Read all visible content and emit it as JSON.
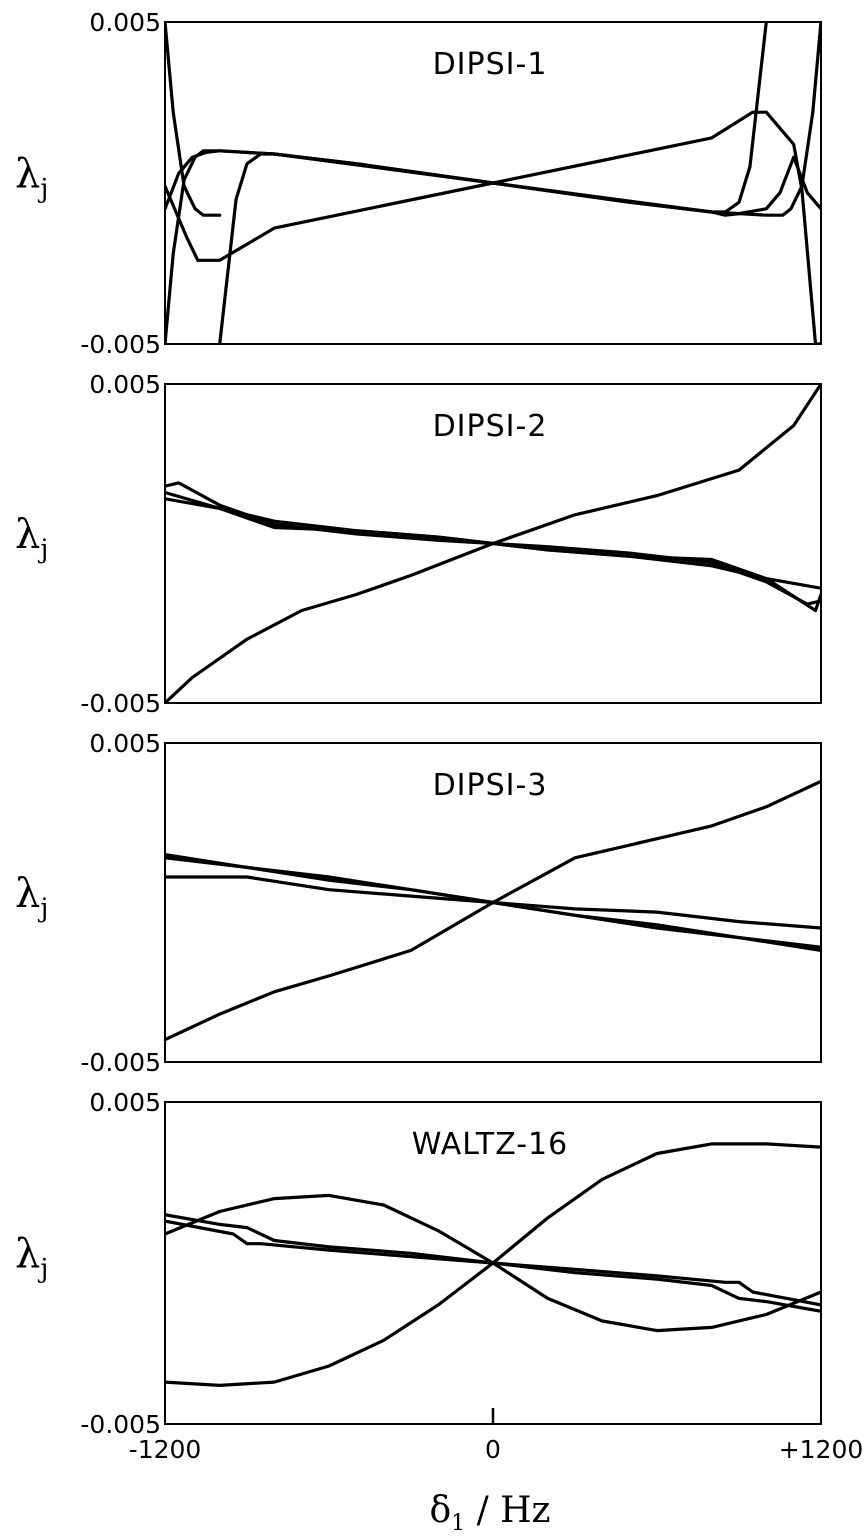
{
  "chart_data": [
    {
      "type": "line",
      "title": "DIPSI-1",
      "ylabel": "λ",
      "ylabel_sub": "j",
      "xlabel": "",
      "xlim": [
        -1200,
        1200
      ],
      "ylim": [
        -0.005,
        0.005
      ],
      "yticks": [
        {
          "value": 0.005,
          "label": "0.005"
        },
        {
          "value": -0.005,
          "label": "-0.005"
        }
      ],
      "xticks": [],
      "series": [
        {
          "x": [
            -1200,
            -1150,
            -1100,
            -1050,
            -1000,
            -800,
            -500,
            0,
            500,
            800,
            850,
            900,
            940,
            1000
          ],
          "y": [
            -0.0008,
            0.0003,
            0.0008,
            0.00095,
            0.001,
            0.0009,
            0.0006,
            0,
            -0.0006,
            -0.0009,
            -0.0009,
            -0.0006,
            0.0005,
            0.005
          ]
        },
        {
          "x": [
            -1200,
            -1170,
            -1130,
            -1090,
            -1060,
            -1000,
            -800,
            0,
            800,
            1000,
            1060,
            1090,
            1130,
            1170
          ],
          "y": [
            -0.005,
            -0.0022,
            0.0001,
            0.0008,
            0.001,
            0.001,
            0.0009,
            0,
            -0.0009,
            -0.001,
            -0.001,
            -0.0008,
            -0.0001,
            0.0022
          ]
        },
        {
          "x": [
            -1000,
            -1060,
            -1090,
            -1130,
            -1170,
            -1200
          ],
          "y": [
            -0.001,
            -0.001,
            -0.0008,
            -0.0001,
            0.0022,
            0.005
          ]
        },
        {
          "x": [
            1170,
            1200
          ],
          "y": [
            0.0022,
            0.005
          ]
        },
        {
          "x": [
            -1000,
            -940,
            -900,
            -850,
            -800,
            -500,
            0,
            500,
            800,
            850,
            900,
            1000,
            1050,
            1100,
            1150,
            1200
          ],
          "y": [
            -0.005,
            -0.0005,
            0.0006,
            0.0009,
            0.0009,
            0.0006,
            0,
            -0.0006,
            -0.0009,
            -0.001,
            -0.00095,
            -0.0008,
            -0.0003,
            0.0008,
            -0.0003,
            -0.0008
          ]
        },
        {
          "x": [
            -1200,
            -1120,
            -1080,
            -1000,
            -800,
            -400,
            0,
            400,
            800,
            950,
            1000,
            1100,
            1130,
            1180,
            1200
          ],
          "y": [
            -0.0001,
            -0.0017,
            -0.0024,
            -0.0024,
            -0.0014,
            -0.0007,
            0,
            0.0007,
            0.0014,
            0.0022,
            0.0022,
            0.0012,
            -0.0002,
            -0.005,
            -0.005
          ]
        }
      ]
    },
    {
      "type": "line",
      "title": "DIPSI-2",
      "ylabel": "λ",
      "ylabel_sub": "j",
      "xlabel": "",
      "xlim": [
        -1200,
        1200
      ],
      "ylim": [
        -0.005,
        0.005
      ],
      "yticks": [
        {
          "value": 0.005,
          "label": "0.005"
        },
        {
          "value": -0.005,
          "label": "-0.005"
        }
      ],
      "xticks": [],
      "series": [
        {
          "x": [
            -1200,
            -1100,
            -900,
            -700,
            -500,
            -300,
            0,
            300,
            600,
            900,
            1100,
            1200
          ],
          "y": [
            -0.005,
            -0.0042,
            -0.003,
            -0.0021,
            -0.0016,
            -0.001,
            0,
            0.0009,
            0.0015,
            0.0023,
            0.0037,
            0.005
          ]
        },
        {
          "x": [
            -1200,
            -1150,
            -1000,
            -800,
            -500,
            -200,
            0,
            200,
            500,
            800,
            1000,
            1150,
            1200
          ],
          "y": [
            0.0018,
            0.0019,
            0.0012,
            0.0006,
            0.0003,
            0.0001,
            0,
            -0.0001,
            -0.0003,
            -0.0006,
            -0.0012,
            -0.0019,
            -0.0018
          ]
        },
        {
          "x": [
            -1200,
            -1000,
            -800,
            -500,
            -200,
            0,
            200,
            500,
            800,
            1000,
            1180,
            1200
          ],
          "y": [
            0.0016,
            0.0011,
            0.0005,
            0.0004,
            0.0002,
            0,
            -0.0002,
            -0.0004,
            -0.0005,
            -0.0011,
            -0.0021,
            -0.0016
          ]
        },
        {
          "x": [
            -1200,
            -1000,
            -800,
            -500,
            -200,
            0,
            200,
            500,
            800,
            1000,
            1200
          ],
          "y": [
            0.0014,
            0.0011,
            0.0007,
            0.0004,
            0.0002,
            0,
            -0.0002,
            -0.0004,
            -0.0007,
            -0.0011,
            -0.0014
          ]
        }
      ]
    },
    {
      "type": "line",
      "title": "DIPSI-3",
      "ylabel": "λ",
      "ylabel_sub": "j",
      "xlabel": "",
      "xlim": [
        -1200,
        1200
      ],
      "ylim": [
        -0.005,
        0.005
      ],
      "yticks": [
        {
          "value": 0.005,
          "label": "0.005"
        },
        {
          "value": -0.005,
          "label": "-0.005"
        }
      ],
      "xticks": [],
      "series": [
        {
          "x": [
            -1200,
            -1000,
            -800,
            -600,
            -300,
            0,
            300,
            600,
            800,
            1000,
            1200
          ],
          "y": [
            -0.0043,
            -0.0035,
            -0.0028,
            -0.0023,
            -0.0015,
            0,
            0.0014,
            0.002,
            0.0024,
            0.003,
            0.0038
          ]
        },
        {
          "x": [
            -1200,
            -900,
            -600,
            -300,
            0,
            300,
            600,
            900,
            1200
          ],
          "y": [
            0.0015,
            0.0011,
            0.0007,
            0.0004,
            0,
            -0.0004,
            -0.0007,
            -0.0011,
            -0.0015
          ]
        },
        {
          "x": [
            -1200,
            -900,
            -600,
            -300,
            0,
            300,
            600,
            900,
            1200
          ],
          "y": [
            0.0014,
            0.0011,
            0.0008,
            0.0004,
            0,
            -0.0004,
            -0.0008,
            -0.0011,
            -0.0014
          ]
        },
        {
          "x": [
            -1200,
            -900,
            -600,
            -300,
            0,
            300,
            600,
            900,
            1200
          ],
          "y": [
            0.0008,
            0.0008,
            0.0004,
            0.0002,
            0,
            -0.0002,
            -0.0003,
            -0.0006,
            -0.0008
          ]
        }
      ]
    },
    {
      "type": "line",
      "title": "WALTZ-16",
      "ylabel": "λ",
      "ylabel_sub": "j",
      "xlabel": "δ",
      "xlabel_sub": "1",
      "xlabel_suffix": " / Hz",
      "xlim": [
        -1200,
        1200
      ],
      "ylim": [
        -0.005,
        0.005
      ],
      "yticks": [
        {
          "value": 0.005,
          "label": "0.005"
        },
        {
          "value": -0.005,
          "label": "-0.005"
        }
      ],
      "xticks": [
        {
          "value": -1200,
          "label": "-1200"
        },
        {
          "value": 0,
          "label": "0"
        },
        {
          "value": 1200,
          "label": "+1200"
        }
      ],
      "series": [
        {
          "x": [
            -1200,
            -1000,
            -800,
            -600,
            -400,
            -200,
            0,
            200,
            400,
            600,
            800,
            1000,
            1200
          ],
          "y": [
            -0.0037,
            -0.0038,
            -0.0037,
            -0.0032,
            -0.0024,
            -0.0013,
            0,
            0.0014,
            0.0026,
            0.0034,
            0.0037,
            0.0037,
            0.0036
          ]
        },
        {
          "x": [
            -1200,
            -1000,
            -800,
            -600,
            -400,
            -200,
            0,
            200,
            400,
            600,
            800,
            1000,
            1200
          ],
          "y": [
            0.0009,
            0.0016,
            0.002,
            0.0021,
            0.0018,
            0.001,
            0,
            -0.0011,
            -0.0018,
            -0.0021,
            -0.002,
            -0.0016,
            -0.0009
          ]
        },
        {
          "x": [
            -1200,
            -1000,
            -900,
            -800,
            -600,
            -300,
            0,
            300,
            600,
            800,
            900,
            1000,
            1200
          ],
          "y": [
            0.0015,
            0.0012,
            0.0011,
            0.0007,
            0.0005,
            0.0003,
            0,
            -0.0003,
            -0.0005,
            -0.0007,
            -0.0011,
            -0.0012,
            -0.0015
          ]
        },
        {
          "x": [
            -1200,
            -950,
            -900,
            -850,
            -600,
            -300,
            0,
            300,
            600,
            850,
            900,
            950,
            1200
          ],
          "y": [
            0.0013,
            0.0009,
            0.0006,
            0.0006,
            0.0004,
            0.0002,
            0,
            -0.0002,
            -0.0004,
            -0.0006,
            -0.0006,
            -0.0009,
            -0.0013
          ]
        }
      ]
    }
  ]
}
